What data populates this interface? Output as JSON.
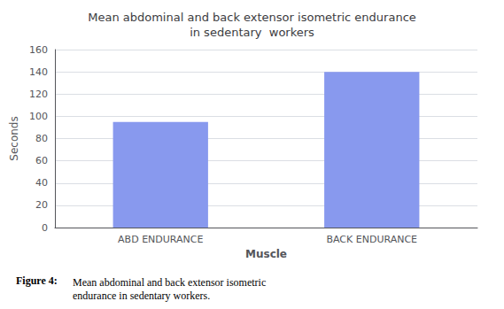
{
  "chart_data": {
    "type": "bar",
    "title": "Mean abdominal and back extensor isometric endurance\nin sedentary  workers",
    "x_label": "Muscle",
    "y_label": "Seconds",
    "categories": [
      "ABD ENDURANCE",
      "BACK ENDURANCE"
    ],
    "values": [
      95,
      140
    ],
    "color": "#8899EE",
    "ylim": [
      0,
      160
    ],
    "yticks": [
      0,
      20,
      40,
      60,
      80,
      100,
      120,
      140,
      160
    ],
    "grid": true,
    "annotations": [
      "Figure 4:",
      "Mean abdominal and back extensor isometric\nendurance in sedentary workers."
    ]
  }
}
